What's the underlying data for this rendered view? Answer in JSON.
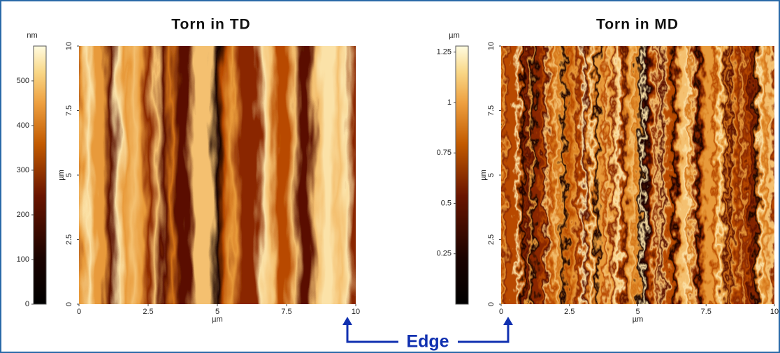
{
  "panels": [
    {
      "title": "Torn in TD",
      "colorbar": {
        "unit": "nm",
        "range": [
          0,
          578
        ],
        "ticks": [
          0,
          100,
          200,
          300,
          400,
          500
        ]
      },
      "x_axis": {
        "label": "µm",
        "range": [
          0,
          10
        ],
        "ticks": [
          0,
          2.5,
          5,
          7.5,
          10
        ]
      },
      "y_axis": {
        "label": "µm",
        "range": [
          0,
          10
        ],
        "ticks": [
          0,
          2.5,
          5,
          7.5,
          10
        ]
      }
    },
    {
      "title": "Torn in MD",
      "colorbar": {
        "unit": "µm",
        "range": [
          0,
          1.28
        ],
        "ticks": [
          0.25,
          0.5,
          0.75,
          1,
          1.25
        ]
      },
      "x_axis": {
        "label": "µm",
        "range": [
          0,
          10
        ],
        "ticks": [
          0,
          2.5,
          5,
          7.5,
          10
        ]
      },
      "y_axis": {
        "label": "µm",
        "range": [
          0,
          10
        ],
        "ticks": [
          0,
          2.5,
          5,
          7.5,
          10
        ]
      }
    }
  ],
  "annotation": "Edge"
}
